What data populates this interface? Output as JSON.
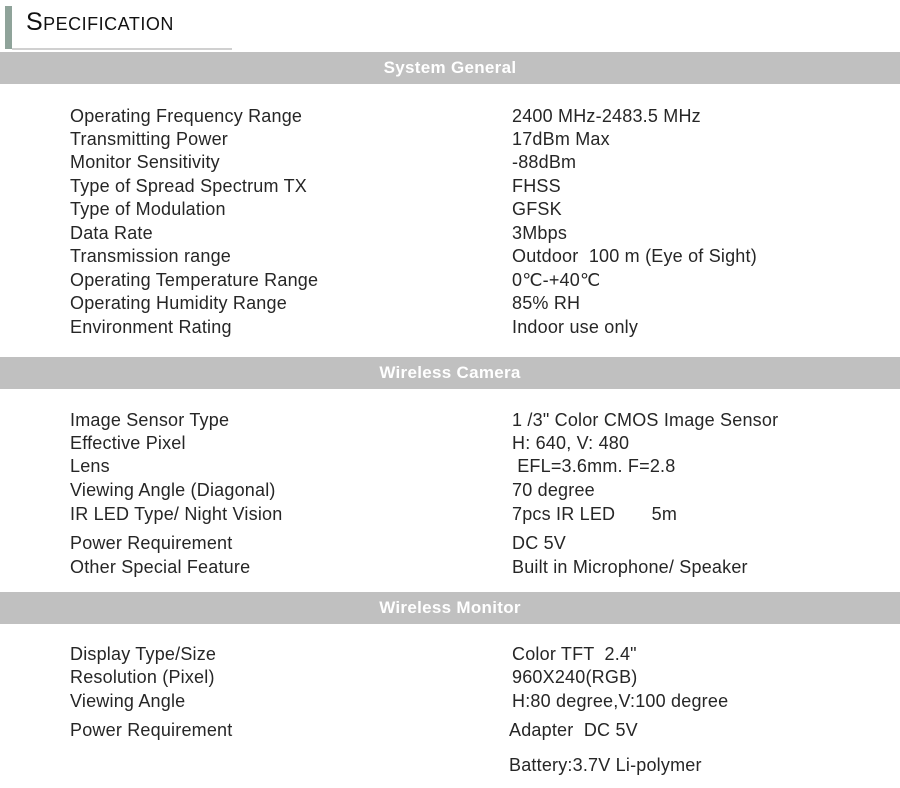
{
  "title": "Specification",
  "sections": [
    {
      "heading": "System General",
      "rows": [
        {
          "label": "Operating Frequency Range",
          "value": "2400 MHz-2483.5 MHz"
        },
        {
          "label": "Transmitting Power",
          "value": "17dBm Max"
        },
        {
          "label": "Monitor Sensitivity",
          "value": "-88dBm"
        },
        {
          "label": "Type of Spread Spectrum TX",
          "value": "FHSS"
        },
        {
          "label": "Type of Modulation",
          "value": "GFSK"
        },
        {
          "label": "Data Rate",
          "value": "3Mbps"
        },
        {
          "label": "Transmission range",
          "value": "Outdoor  100 m (Eye of Sight)"
        },
        {
          "label": "Operating Temperature Range",
          "value": "0℃-+40℃"
        },
        {
          "label": "Operating Humidity Range",
          "value": "85% RH"
        },
        {
          "label": "Environment Rating",
          "value": "Indoor use only"
        }
      ]
    },
    {
      "heading": "Wireless Camera",
      "rows": [
        {
          "label": "Image Sensor Type",
          "value": "1 /3\" Color CMOS Image Sensor"
        },
        {
          "label": "Effective Pixel",
          "value": "H: 640, V: 480"
        },
        {
          "label": "Lens",
          "value": " EFL=3.6mm. F=2.8"
        },
        {
          "label": "Viewing Angle (Diagonal)",
          "value": "70 degree"
        },
        {
          "label": "IR LED Type/ Night Vision",
          "value": "7pcs IR LED       5m"
        },
        {
          "label": "Power Requirement",
          "value": "DC 5V"
        },
        {
          "label": "Other Special Feature",
          "value": "Built in Microphone/ Speaker"
        }
      ]
    },
    {
      "heading": "Wireless Monitor",
      "rows": [
        {
          "label": "Display Type/Size",
          "value": "Color TFT  2.4\""
        },
        {
          "label": "Resolution (Pixel)",
          "value": "960X240(RGB)"
        },
        {
          "label": "Viewing Angle",
          "value": "H:80 degree,V:100 degree"
        },
        {
          "label": "Power Requirement",
          "value": "Adapter  DC 5V"
        },
        {
          "label": "",
          "value": "Battery:3.7V Li-polymer"
        }
      ]
    }
  ]
}
